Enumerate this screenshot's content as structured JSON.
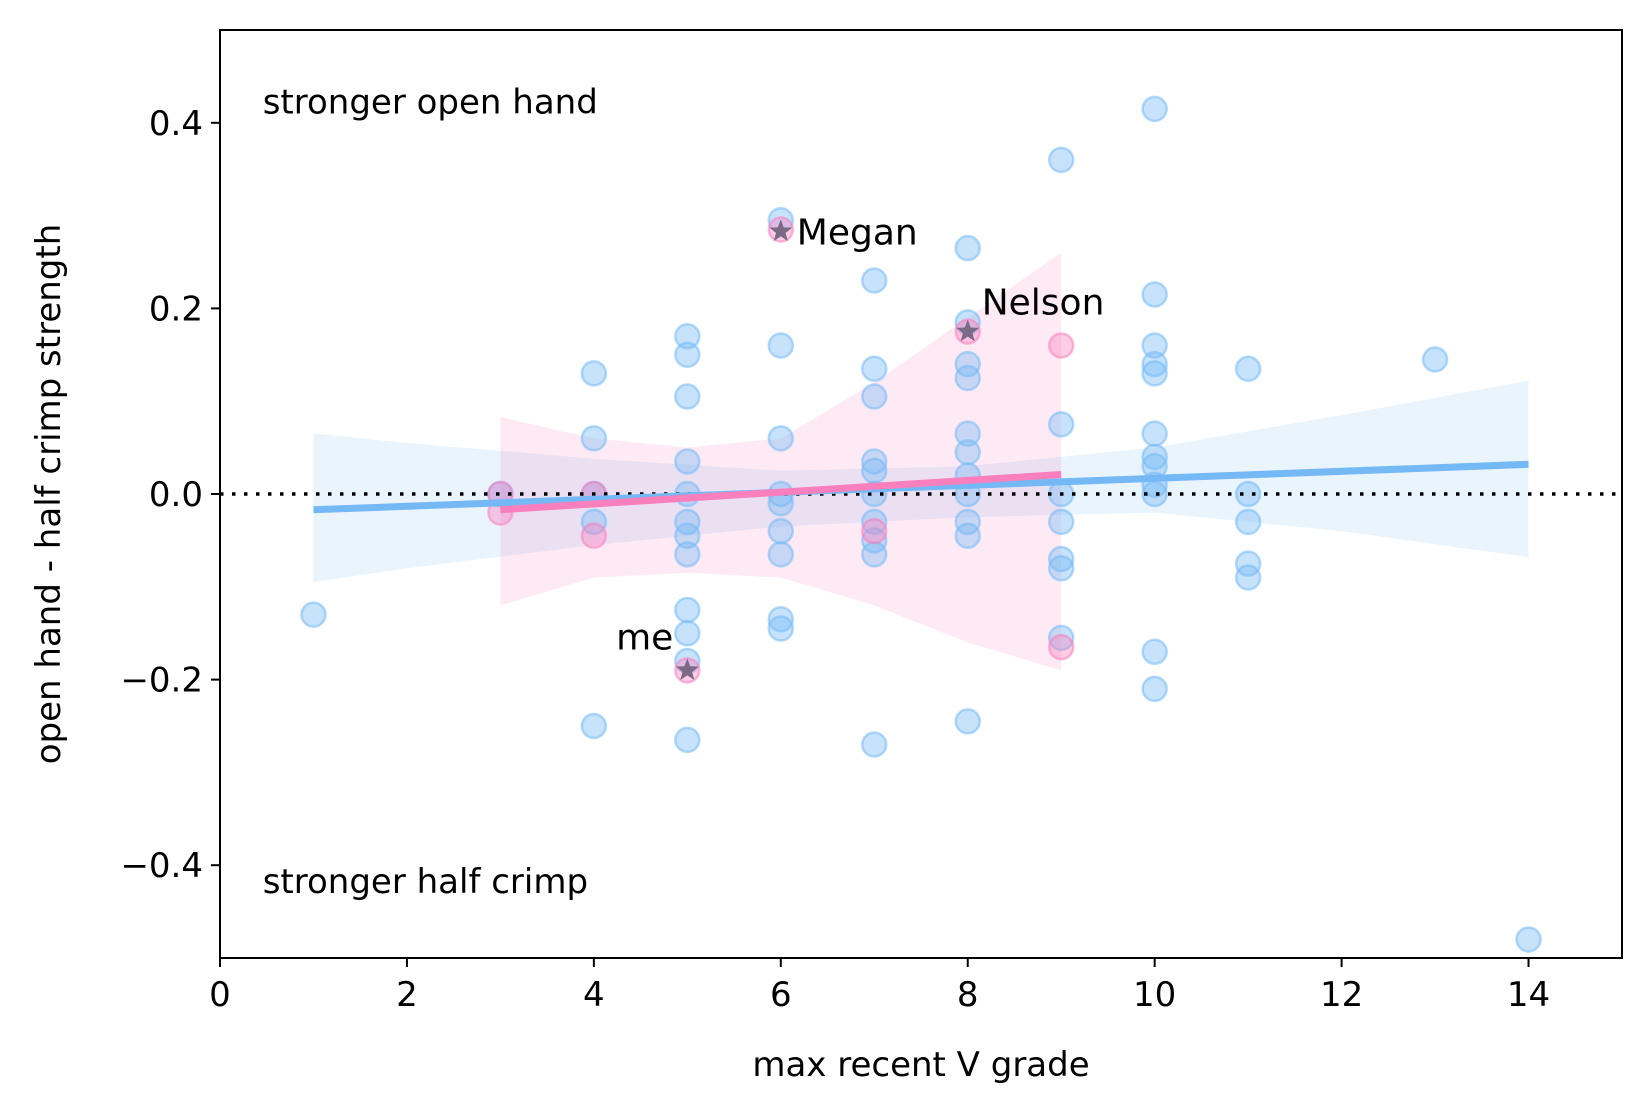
{
  "chart_data": {
    "type": "scatter",
    "xlabel": "max recent V grade",
    "ylabel": "open hand - half crimp strength",
    "xlim": [
      0,
      15
    ],
    "ylim": [
      -0.5,
      0.5
    ],
    "x_ticks": [
      0,
      2,
      4,
      6,
      8,
      10,
      12,
      14
    ],
    "x_tick_labels": [
      "0",
      "2",
      "4",
      "6",
      "8",
      "10",
      "12",
      "14"
    ],
    "y_ticks": [
      0.4,
      0.2,
      0.0,
      -0.2,
      -0.4
    ],
    "y_tick_labels": [
      "0.4",
      "0.2",
      "0.0",
      "−0.2",
      "−0.4"
    ],
    "grid": false,
    "reference_line": {
      "y": 0.0,
      "style": "dotted",
      "color": "#000000"
    },
    "region_labels": [
      {
        "text": "stronger open hand",
        "x": 0.5,
        "y": 0.41
      },
      {
        "text": "stronger half crimp",
        "x": 0.5,
        "y": -0.43
      }
    ],
    "series": [
      {
        "color": "#74b9f5",
        "points": [
          [
            1,
            -0.13
          ],
          [
            3,
            0.0
          ],
          [
            4,
            0.13
          ],
          [
            4,
            0.06
          ],
          [
            4,
            0.0
          ],
          [
            4,
            -0.03
          ],
          [
            4,
            -0.25
          ],
          [
            5,
            0.17
          ],
          [
            5,
            0.15
          ],
          [
            5,
            0.105
          ],
          [
            5,
            0.035
          ],
          [
            5,
            0.0
          ],
          [
            5,
            -0.03
          ],
          [
            5,
            -0.045
          ],
          [
            5,
            -0.065
          ],
          [
            5,
            -0.125
          ],
          [
            5,
            -0.15
          ],
          [
            5,
            -0.18
          ],
          [
            5,
            -0.265
          ],
          [
            6,
            0.295
          ],
          [
            6,
            0.16
          ],
          [
            6,
            0.06
          ],
          [
            6,
            0.0
          ],
          [
            6,
            -0.01
          ],
          [
            6,
            -0.04
          ],
          [
            6,
            -0.065
          ],
          [
            6,
            -0.135
          ],
          [
            6,
            -0.145
          ],
          [
            7,
            0.23
          ],
          [
            7,
            0.135
          ],
          [
            7,
            0.105
          ],
          [
            7,
            0.035
          ],
          [
            7,
            0.025
          ],
          [
            7,
            0.0
          ],
          [
            7,
            -0.03
          ],
          [
            7,
            -0.05
          ],
          [
            7,
            -0.065
          ],
          [
            7,
            -0.27
          ],
          [
            8,
            0.265
          ],
          [
            8,
            0.185
          ],
          [
            8,
            0.14
          ],
          [
            8,
            0.125
          ],
          [
            8,
            0.065
          ],
          [
            8,
            0.045
          ],
          [
            8,
            0.02
          ],
          [
            8,
            0.0
          ],
          [
            8,
            -0.03
          ],
          [
            8,
            -0.045
          ],
          [
            8,
            -0.245
          ],
          [
            9,
            0.36
          ],
          [
            9,
            0.075
          ],
          [
            9,
            0.0
          ],
          [
            9,
            -0.03
          ],
          [
            9,
            -0.07
          ],
          [
            9,
            -0.08
          ],
          [
            9,
            -0.155
          ],
          [
            10,
            0.415
          ],
          [
            10,
            0.215
          ],
          [
            10,
            0.16
          ],
          [
            10,
            0.14
          ],
          [
            10,
            0.13
          ],
          [
            10,
            0.065
          ],
          [
            10,
            0.04
          ],
          [
            10,
            0.03
          ],
          [
            10,
            0.01
          ],
          [
            10,
            0.0
          ],
          [
            10,
            -0.17
          ],
          [
            10,
            -0.21
          ],
          [
            11,
            0.135
          ],
          [
            11,
            0.0
          ],
          [
            11,
            -0.03
          ],
          [
            11,
            -0.075
          ],
          [
            11,
            -0.09
          ],
          [
            13,
            0.145
          ],
          [
            14,
            -0.48
          ]
        ],
        "regression": {
          "x": [
            1,
            14
          ],
          "y": [
            -0.017,
            0.032
          ]
        },
        "ci_band": {
          "x": [
            1,
            2,
            4,
            6,
            8,
            10,
            12,
            14
          ],
          "upper": [
            0.065,
            0.055,
            0.038,
            0.025,
            0.03,
            0.05,
            0.085,
            0.122
          ],
          "lower": [
            -0.095,
            -0.08,
            -0.055,
            -0.035,
            -0.025,
            -0.02,
            -0.04,
            -0.068
          ]
        }
      },
      {
        "color": "#f97fbd",
        "points": [
          [
            3,
            0.0
          ],
          [
            3,
            -0.02
          ],
          [
            4,
            0.0
          ],
          [
            4,
            -0.045
          ],
          [
            5,
            -0.19
          ],
          [
            6,
            0.285
          ],
          [
            7,
            -0.04
          ],
          [
            8,
            0.175
          ],
          [
            9,
            0.16
          ],
          [
            9,
            -0.165
          ]
        ],
        "regression": {
          "x": [
            3,
            9
          ],
          "y": [
            -0.017,
            0.021
          ]
        },
        "ci_band": {
          "x": [
            3,
            4,
            5,
            6,
            7,
            8,
            9
          ],
          "upper": [
            0.083,
            0.06,
            0.05,
            0.06,
            0.12,
            0.19,
            0.26
          ],
          "lower": [
            -0.12,
            -0.09,
            -0.085,
            -0.09,
            -0.12,
            -0.16,
            -0.19
          ]
        }
      }
    ],
    "annotations": [
      {
        "text": "Megan",
        "x": 6,
        "y": 0.283,
        "marker": "star",
        "label_pos": "right"
      },
      {
        "text": "Nelson",
        "x": 8,
        "y": 0.175,
        "marker": "star",
        "label_pos": "above-right"
      },
      {
        "text": "me",
        "x": 5,
        "y": -0.19,
        "marker": "star",
        "label_pos": "above-left"
      }
    ],
    "marker_color": "#7a6a86"
  }
}
